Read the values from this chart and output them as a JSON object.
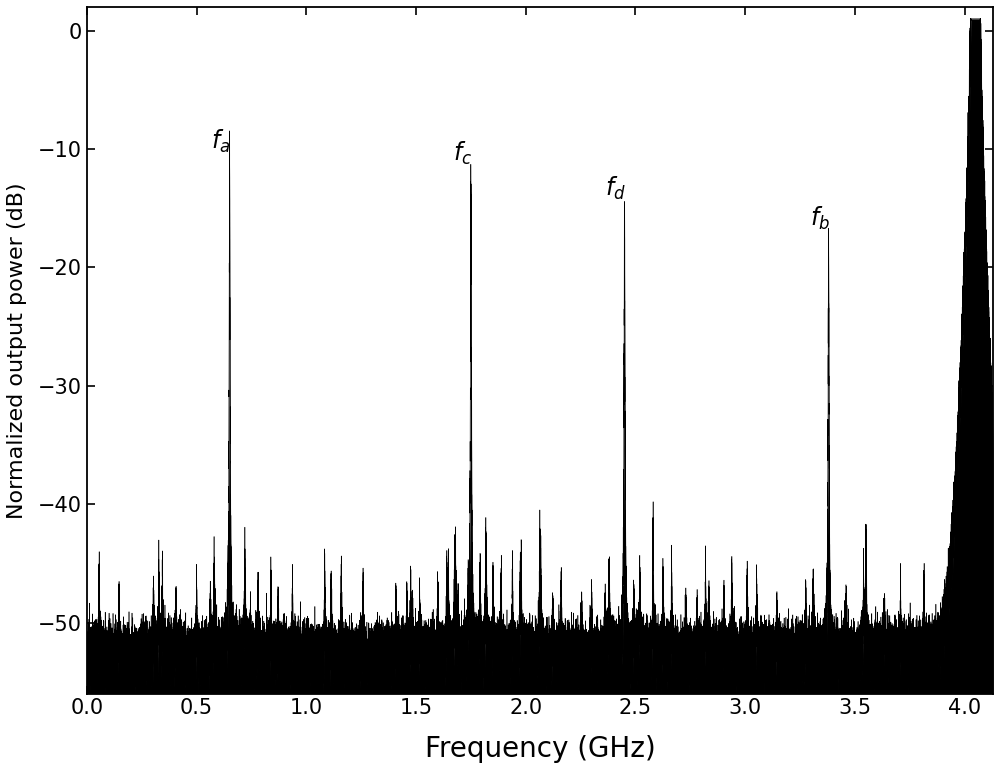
{
  "title": "",
  "xlabel": "Frequency (GHz)",
  "ylabel": "Normalized output power (dB)",
  "xlim": [
    0.0,
    4.13
  ],
  "ylim": [
    -56,
    2
  ],
  "xticks": [
    0.0,
    0.5,
    1.0,
    1.5,
    2.0,
    2.5,
    3.0,
    3.5,
    4.0
  ],
  "yticks": [
    0,
    -10,
    -20,
    -30,
    -40,
    -50
  ],
  "peaks": [
    {
      "freq": 0.65,
      "amp": -12.0,
      "label": "f_a"
    },
    {
      "freq": 1.75,
      "amp": -13.0,
      "label": "f_c"
    },
    {
      "freq": 2.45,
      "amp": -16.0,
      "label": "f_d"
    },
    {
      "freq": 3.38,
      "amp": -18.5,
      "label": "f_b"
    },
    {
      "freq": 4.05,
      "amp": -2.5,
      "label": ""
    }
  ],
  "noise_floor": -53.0,
  "noise_std": 1.2,
  "line_color": "#000000",
  "background_color": "#ffffff",
  "figsize": [
    10.0,
    7.7
  ],
  "dpi": 100,
  "xlabel_fontsize": 20,
  "ylabel_fontsize": 16,
  "tick_fontsize": 15,
  "annotation_fontsize": 17
}
